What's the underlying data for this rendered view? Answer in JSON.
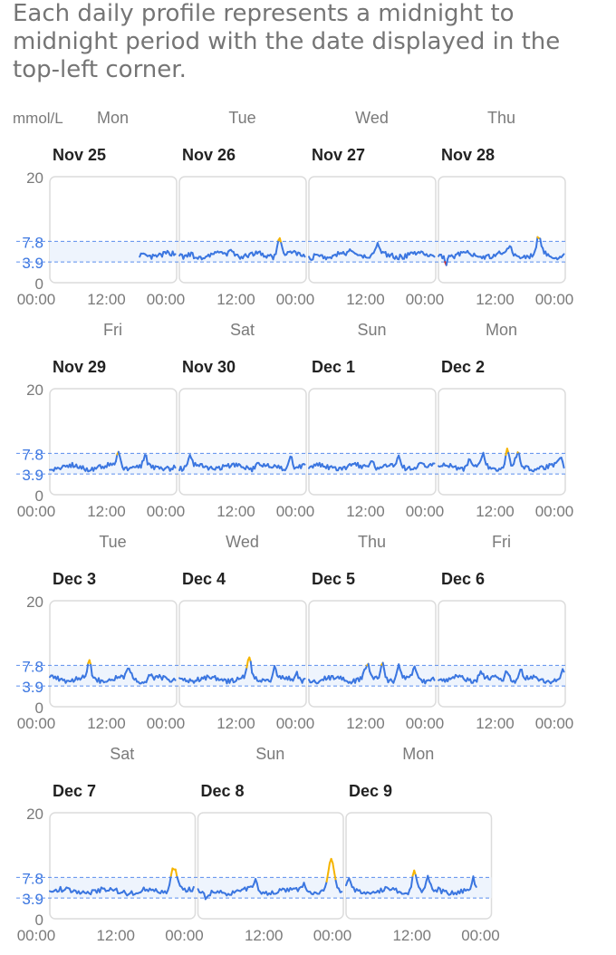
{
  "intro_text": "Each daily profile represents a midnight to midnight period with the date displayed in the top-left corner.",
  "unit_label": "mmol/L",
  "target_range": {
    "low": 3.9,
    "high": 7.8,
    "low_label": "3.9",
    "high_label": "7.8"
  },
  "y_ticks": [
    "20",
    "0"
  ],
  "x_tick_labels": [
    "00:00",
    "12:00"
  ],
  "colors": {
    "in_range": "#3b76e0",
    "above": "#f5b400",
    "below": "#d32f2f",
    "range_line": "#5b8ded",
    "range_fill": "#eef4fd",
    "panel_border": "#dcdcdc",
    "label_gray": "#7a7a7a",
    "date_text": "#222222"
  },
  "chart_data": {
    "type": "line",
    "ylim": [
      0,
      20
    ],
    "x_unit": "hours",
    "xlim": [
      0,
      24
    ],
    "days": [
      {
        "weekday": "Mon",
        "date": "Nov 25",
        "values": []
      },
      {
        "weekday": "Tue",
        "date": "Nov 26",
        "values": []
      },
      {
        "weekday": "Wed",
        "date": "Nov 27",
        "values": []
      },
      {
        "weekday": "Thu",
        "date": "Nov 28",
        "values": []
      },
      {
        "weekday": "Fri",
        "date": "Nov 29",
        "values": []
      },
      {
        "weekday": "Sat",
        "date": "Nov 30",
        "values": []
      },
      {
        "weekday": "Sun",
        "date": "Dec 1",
        "values": []
      },
      {
        "weekday": "Mon",
        "date": "Dec 2",
        "values": []
      },
      {
        "weekday": "Tue",
        "date": "Dec 3",
        "values": []
      },
      {
        "weekday": "Wed",
        "date": "Dec 4",
        "values": []
      },
      {
        "weekday": "Thu",
        "date": "Dec 5",
        "values": []
      },
      {
        "weekday": "Fri",
        "date": "Dec 6",
        "values": []
      },
      {
        "weekday": "Sat",
        "date": "Dec 7",
        "values": []
      },
      {
        "weekday": "Sun",
        "date": "Dec 8",
        "values": []
      },
      {
        "weekday": "Mon",
        "date": "Dec 9",
        "values": []
      }
    ]
  }
}
